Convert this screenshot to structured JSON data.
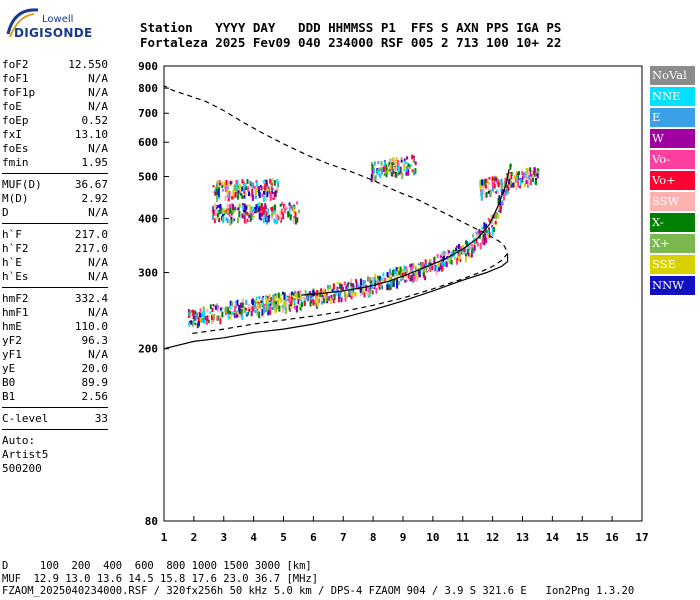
{
  "logo": {
    "line1": "Lowell",
    "line2": "DIGISONDE"
  },
  "header": {
    "labels": "Station   YYYY DAY   DDD HHMMSS P1  FFS S AXN PPS IGA PS",
    "values": "Fortaleza 2025 Fev09 040 234000 RSF 005 2 713 100 10+ 22"
  },
  "params": {
    "group1": [
      {
        "k": "foF2",
        "v": "12.550"
      },
      {
        "k": "foF1",
        "v": "N/A"
      },
      {
        "k": "foF1p",
        "v": "N/A"
      },
      {
        "k": "foE",
        "v": "N/A"
      },
      {
        "k": "foEp",
        "v": "0.52"
      },
      {
        "k": "fxI",
        "v": "13.10"
      },
      {
        "k": "foEs",
        "v": "N/A"
      },
      {
        "k": "fmin",
        "v": "1.95"
      }
    ],
    "group2": [
      {
        "k": "MUF(D)",
        "v": "36.67"
      },
      {
        "k": "M(D)",
        "v": "2.92"
      },
      {
        "k": "D",
        "v": "N/A"
      }
    ],
    "group3": [
      {
        "k": "h`F",
        "v": "217.0"
      },
      {
        "k": "h`F2",
        "v": "217.0"
      },
      {
        "k": "h`E",
        "v": "N/A"
      },
      {
        "k": "h`Es",
        "v": "N/A"
      }
    ],
    "group4": [
      {
        "k": "hmF2",
        "v": "332.4"
      },
      {
        "k": "hmF1",
        "v": "N/A"
      },
      {
        "k": "hmE",
        "v": "110.0"
      },
      {
        "k": "yF2",
        "v": "96.3"
      },
      {
        "k": "yF1",
        "v": "N/A"
      },
      {
        "k": "yE",
        "v": "20.0"
      },
      {
        "k": "B0",
        "v": "89.9"
      },
      {
        "k": "B1",
        "v": "2.56"
      }
    ],
    "group5": [
      {
        "k": "C-level",
        "v": "33"
      }
    ],
    "auto": [
      "Auto:",
      "Artist5",
      "500200"
    ]
  },
  "legend": [
    {
      "label": "NoVal",
      "color": "#8c8c8c"
    },
    {
      "label": "NNE",
      "color": "#00e0ff"
    },
    {
      "label": "E",
      "color": "#3aa0e8"
    },
    {
      "label": "W",
      "color": "#a000a0"
    },
    {
      "label": "Vo-",
      "color": "#ff3fa0"
    },
    {
      "label": "Vo+",
      "color": "#ff0030"
    },
    {
      "label": "SSW",
      "color": "#ffb0b0"
    },
    {
      "label": "X-",
      "color": "#008000"
    },
    {
      "label": "X+",
      "color": "#7cb850"
    },
    {
      "label": "SSE",
      "color": "#d8d000"
    },
    {
      "label": "NNW",
      "color": "#1010c0"
    }
  ],
  "footer": {
    "line1": "D     100  200  400  600  800 1000 1500 3000 [km]",
    "line2": "MUF  12.9 13.0 13.6 14.5 15.8 17.6 23.0 36.7 [MHz]",
    "line3": "FZAOM_2025040234000.RSF / 320fx256h 50 kHz 5.0 km / DPS-4 FZAOM 904 / 3.9 S 321.6 E   Ion2Png 1.3.20"
  },
  "chart_data": {
    "type": "scatter",
    "xlim": [
      1,
      17
    ],
    "ylim": [
      80,
      900
    ],
    "x_ticks": [
      "1",
      "2",
      "3",
      "4",
      "5",
      "6",
      "7",
      "8",
      "9",
      "10",
      "11",
      "12",
      "13",
      "14",
      "15",
      "16",
      "17"
    ],
    "y_ticks": [
      "80",
      "200",
      "300",
      "400",
      "500",
      "600",
      "700",
      "800",
      "900"
    ],
    "y_tick_values": [
      80,
      200,
      300,
      400,
      500,
      600,
      700,
      800,
      900
    ],
    "y_scale": "log",
    "grid": false,
    "profile_curve": {
      "x": [
        1.95,
        3,
        4,
        5,
        6,
        7,
        8,
        9,
        10,
        11,
        11.5,
        12,
        12.3,
        12.5,
        12.4,
        12.2,
        11.8,
        11,
        10.2,
        9.5,
        8.8,
        8,
        7.2,
        6.5,
        5.8,
        5,
        4.3,
        3.6,
        3,
        2.4,
        1.8,
        1.3,
        1.0
      ],
      "y": [
        217,
        222,
        228,
        233,
        238,
        244,
        252,
        262,
        275,
        290,
        299,
        310,
        320,
        332,
        345,
        355,
        368,
        392,
        418,
        442,
        462,
        490,
        515,
        535,
        560,
        595,
        630,
        670,
        710,
        745,
        770,
        790,
        810
      ]
    },
    "trace_curve": {
      "x": [
        5.6,
        6.2,
        7,
        7.8,
        8.5,
        9.2,
        9.8,
        10.4,
        11,
        11.5,
        11.9,
        12.2,
        12.45,
        12.55
      ],
      "y": [
        266,
        268,
        272,
        278,
        286,
        298,
        310,
        322,
        340,
        360,
        388,
        430,
        480,
        520
      ]
    },
    "traces": [
      {
        "x0": 1.8,
        "x1": 5.7,
        "y0": 238,
        "y1": 265
      },
      {
        "x0": 5.7,
        "x1": 7.6,
        "y0": 262,
        "y1": 282
      },
      {
        "x0": 7.6,
        "x1": 9.6,
        "y0": 280,
        "y1": 308
      },
      {
        "x0": 9.6,
        "x1": 11.2,
        "y0": 305,
        "y1": 345
      },
      {
        "x0": 11.2,
        "x1": 12.0,
        "y0": 345,
        "y1": 395
      },
      {
        "x0": 12.0,
        "x1": 12.6,
        "y0": 395,
        "y1": 520
      },
      {
        "x0": 2.6,
        "x1": 4.8,
        "y0": 470,
        "y1": 475
      },
      {
        "x0": 2.6,
        "x1": 5.5,
        "y0": 415,
        "y1": 420
      },
      {
        "x0": 7.9,
        "x1": 9.4,
        "y0": 520,
        "y1": 540
      },
      {
        "x0": 11.5,
        "x1": 13.5,
        "y0": 470,
        "y1": 510
      }
    ]
  }
}
